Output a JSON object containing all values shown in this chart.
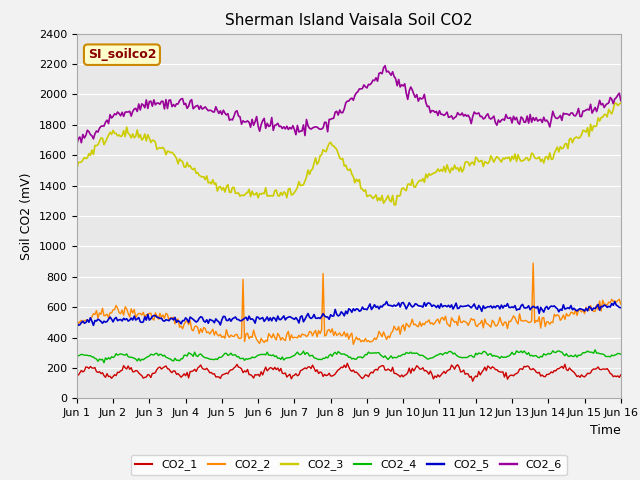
{
  "title": "Sherman Island Vaisala Soil CO2",
  "ylabel": "Soil CO2 (mV)",
  "xlabel": "Time",
  "ylim": [
    0,
    2400
  ],
  "xlim": [
    0,
    360
  ],
  "plot_bg_color": "#e8e8e8",
  "fig_bg_color": "#f2f2f2",
  "label_box_text": "SI_soilco2",
  "label_box_bg": "#ffffcc",
  "label_box_border": "#cc8800",
  "label_text_color": "#880000",
  "xtick_labels": [
    "Jun 1",
    "Jun 2",
    "Jun 3",
    "Jun 4",
    "Jun 5",
    "Jun 6",
    "Jun 7",
    "Jun 8",
    "Jun 9",
    "Jun 10",
    "Jun 11",
    "Jun 12",
    "Jun 13",
    "Jun 14",
    "Jun 15",
    "Jun 16"
  ],
  "xtick_positions": [
    0,
    24,
    48,
    72,
    96,
    120,
    144,
    168,
    192,
    216,
    240,
    264,
    288,
    312,
    336,
    360
  ],
  "ytick_positions": [
    0,
    200,
    400,
    600,
    800,
    1000,
    1200,
    1400,
    1600,
    1800,
    2000,
    2200,
    2400
  ],
  "legend_labels": [
    "CO2_1",
    "CO2_2",
    "CO2_3",
    "CO2_4",
    "CO2_5",
    "CO2_6"
  ],
  "line_colors": [
    "#cc0000",
    "#ff8800",
    "#cccc00",
    "#00bb00",
    "#0000cc",
    "#990099"
  ],
  "line_widths": [
    1.0,
    1.0,
    1.2,
    1.0,
    1.2,
    1.2
  ],
  "grid_color": "#ffffff",
  "tick_label_fontsize": 8,
  "axis_label_fontsize": 9,
  "title_fontsize": 11
}
